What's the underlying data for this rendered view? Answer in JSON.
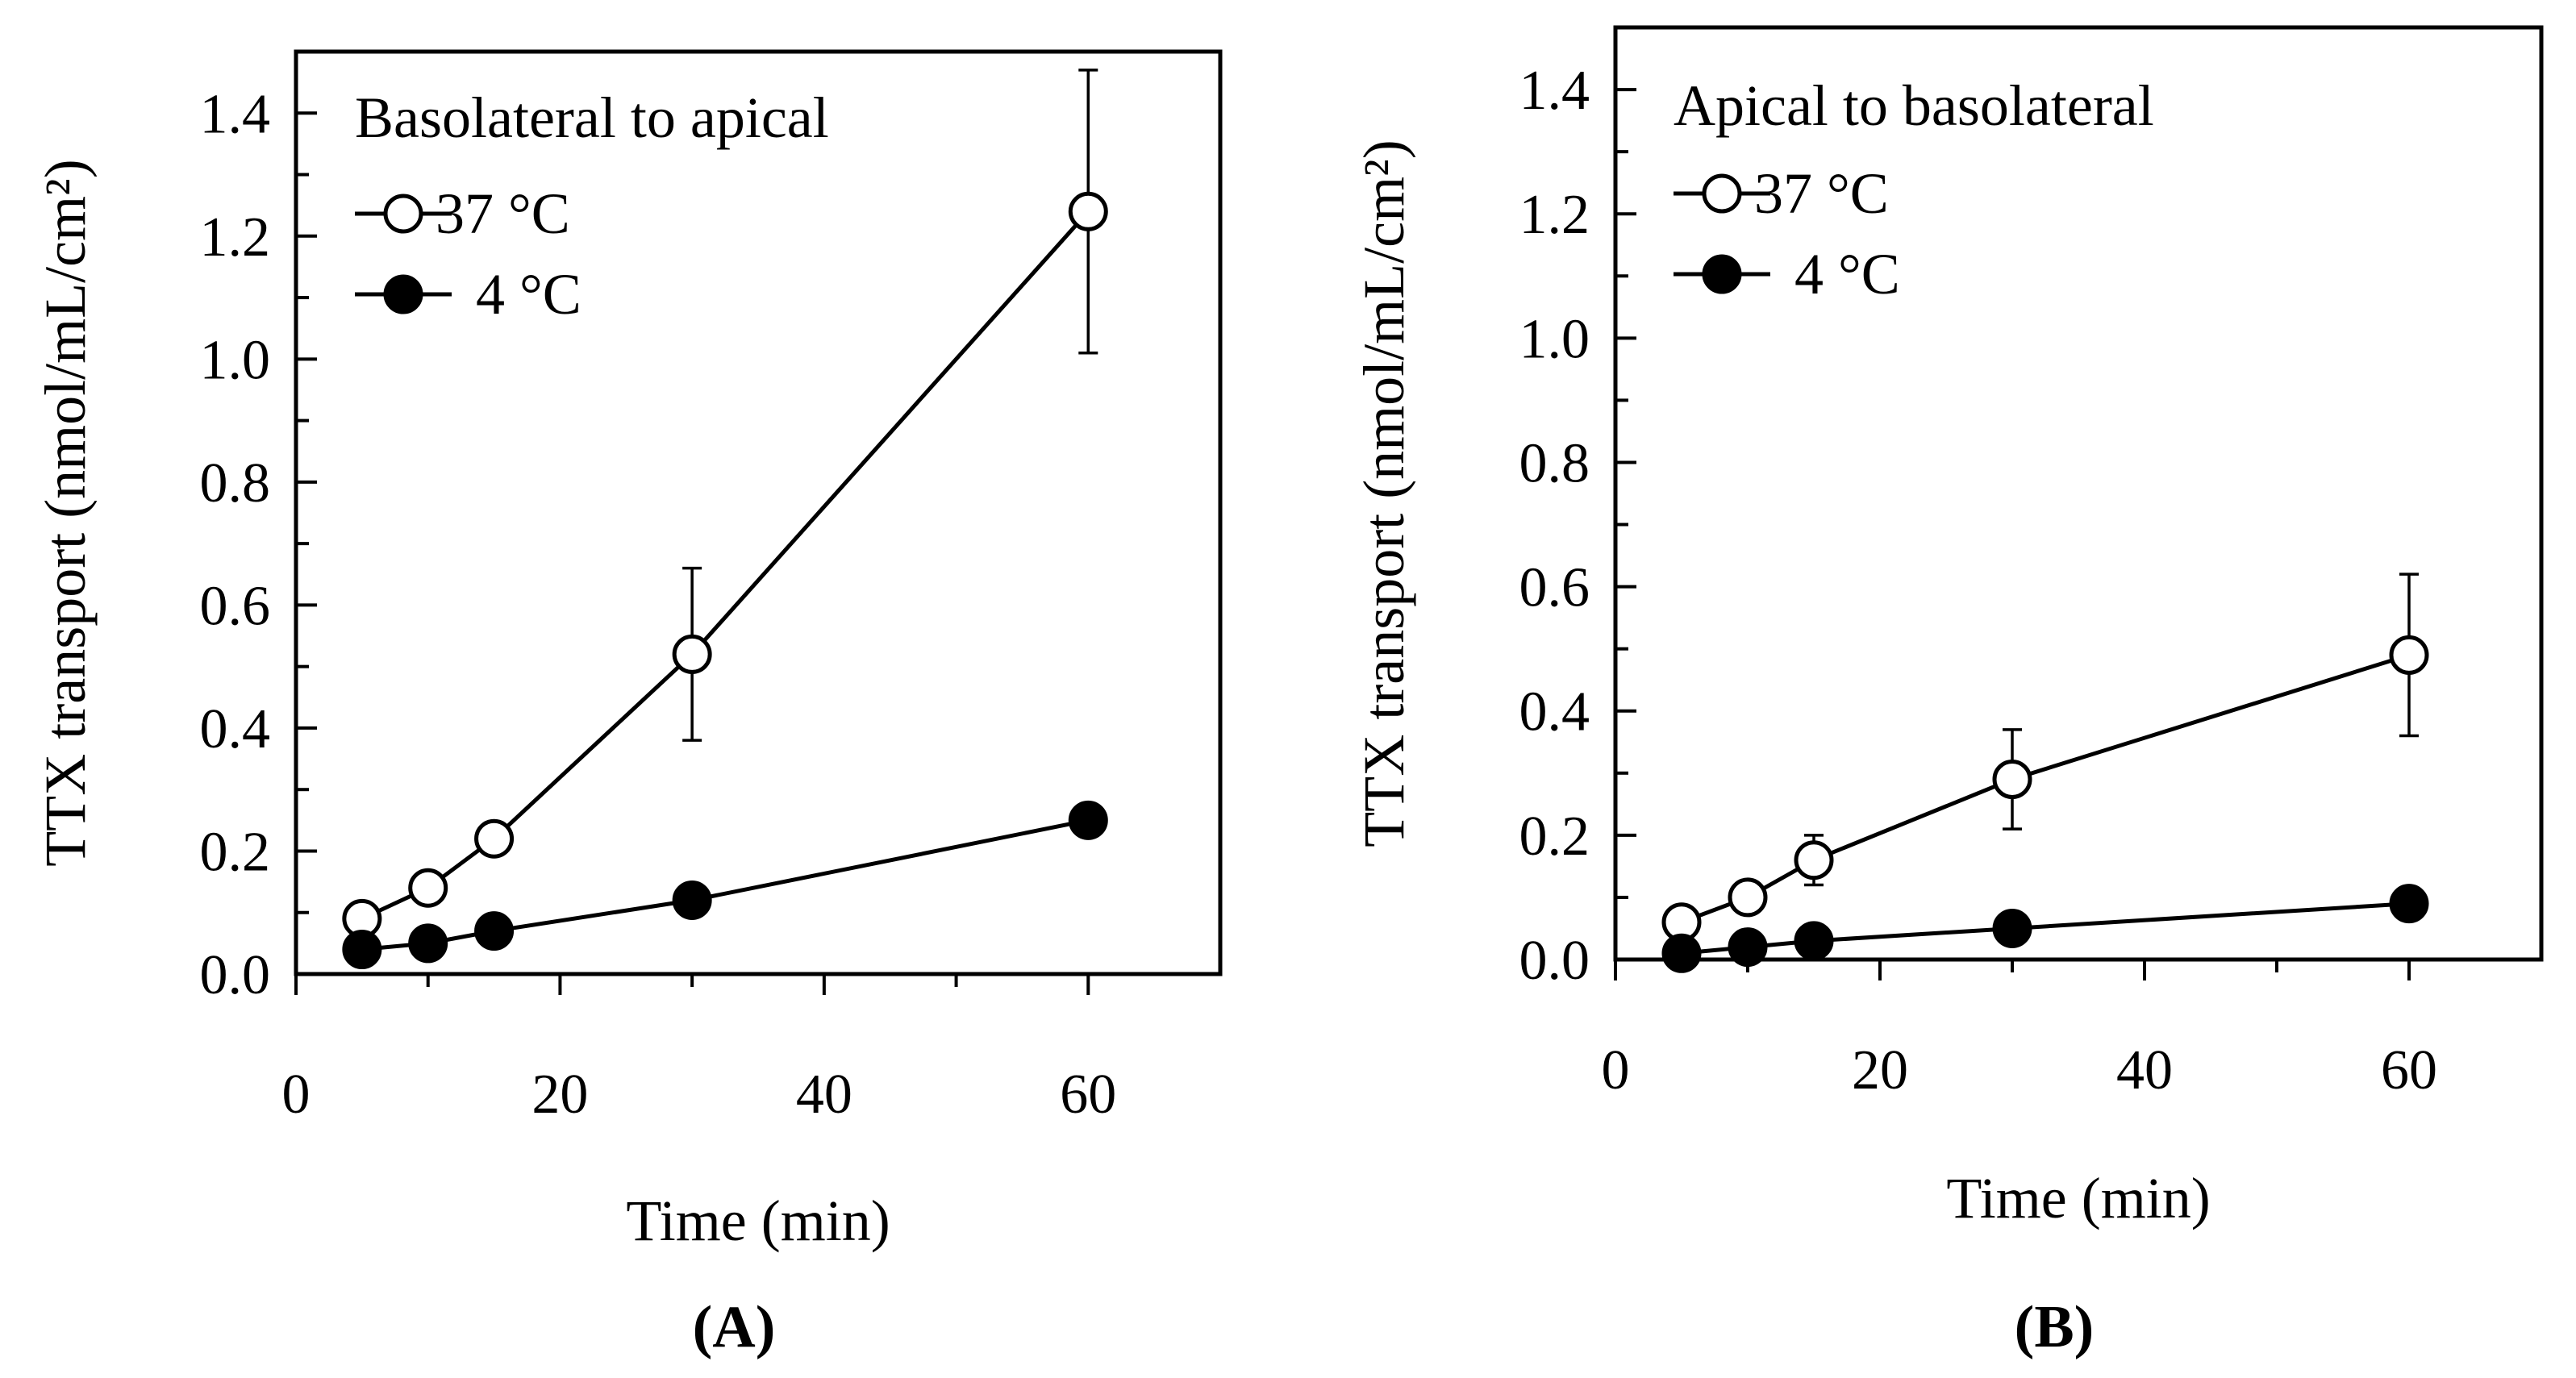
{
  "chart_data": [
    {
      "type": "line",
      "panel": "A",
      "panel_label": "(A)",
      "title": "Basolateral to apical",
      "xlabel": "Time (min)",
      "ylabel": "TTX transport (nmol/mL/cm²)",
      "xlim": [
        0,
        70
      ],
      "ylim": [
        0,
        1.5
      ],
      "x_ticks": [
        0,
        20,
        40,
        60
      ],
      "y_ticks": [
        0.0,
        0.2,
        0.4,
        0.6,
        0.8,
        1.0,
        1.2,
        1.4
      ],
      "x_tick_labels": [
        "0",
        "20",
        "40",
        "60"
      ],
      "y_tick_labels": [
        "0.0",
        "0.2",
        "0.4",
        "0.6",
        "0.8",
        "1.0",
        "1.2",
        "1.4"
      ],
      "legend_position": "top-left",
      "series": [
        {
          "name": "37 °C",
          "legend_label": "37 °C",
          "marker": "open-circle",
          "x": [
            5,
            10,
            15,
            30,
            60
          ],
          "y": [
            0.09,
            0.14,
            0.22,
            0.52,
            1.24
          ],
          "error": [
            0.0,
            0.0,
            0.0,
            0.14,
            0.23
          ]
        },
        {
          "name": "4 °C",
          "legend_label": "4 °C",
          "marker": "filled-circle",
          "x": [
            5,
            10,
            15,
            30,
            60
          ],
          "y": [
            0.04,
            0.05,
            0.07,
            0.12,
            0.25
          ],
          "error": [
            0.0,
            0.0,
            0.0,
            0.0,
            0.02
          ]
        }
      ]
    },
    {
      "type": "line",
      "panel": "B",
      "panel_label": "(B)",
      "title": "Apical to basolateral",
      "xlabel": "Time (min)",
      "ylabel": "TTX transport (nmol/mL/cm²)",
      "xlim": [
        0,
        70
      ],
      "ylim": [
        0,
        1.5
      ],
      "x_ticks": [
        0,
        20,
        40,
        60
      ],
      "y_ticks": [
        0.0,
        0.2,
        0.4,
        0.6,
        0.8,
        1.0,
        1.2,
        1.4
      ],
      "x_tick_labels": [
        "0",
        "20",
        "40",
        "60"
      ],
      "y_tick_labels": [
        "0.0",
        "0.2",
        "0.4",
        "0.6",
        "0.8",
        "1.0",
        "1.2",
        "1.4"
      ],
      "legend_position": "top-left",
      "series": [
        {
          "name": "37 °C",
          "legend_label": "37 °C",
          "marker": "open-circle",
          "x": [
            5,
            10,
            15,
            30,
            60
          ],
          "y": [
            0.06,
            0.1,
            0.16,
            0.29,
            0.49
          ],
          "error": [
            0.0,
            0.0,
            0.04,
            0.08,
            0.13
          ]
        },
        {
          "name": "4 °C",
          "legend_label": "4 °C",
          "marker": "filled-circle",
          "x": [
            5,
            10,
            15,
            30,
            60
          ],
          "y": [
            0.01,
            0.02,
            0.03,
            0.05,
            0.09
          ],
          "error": [
            0.0,
            0.0,
            0.0,
            0.0,
            0.0
          ]
        }
      ]
    }
  ]
}
